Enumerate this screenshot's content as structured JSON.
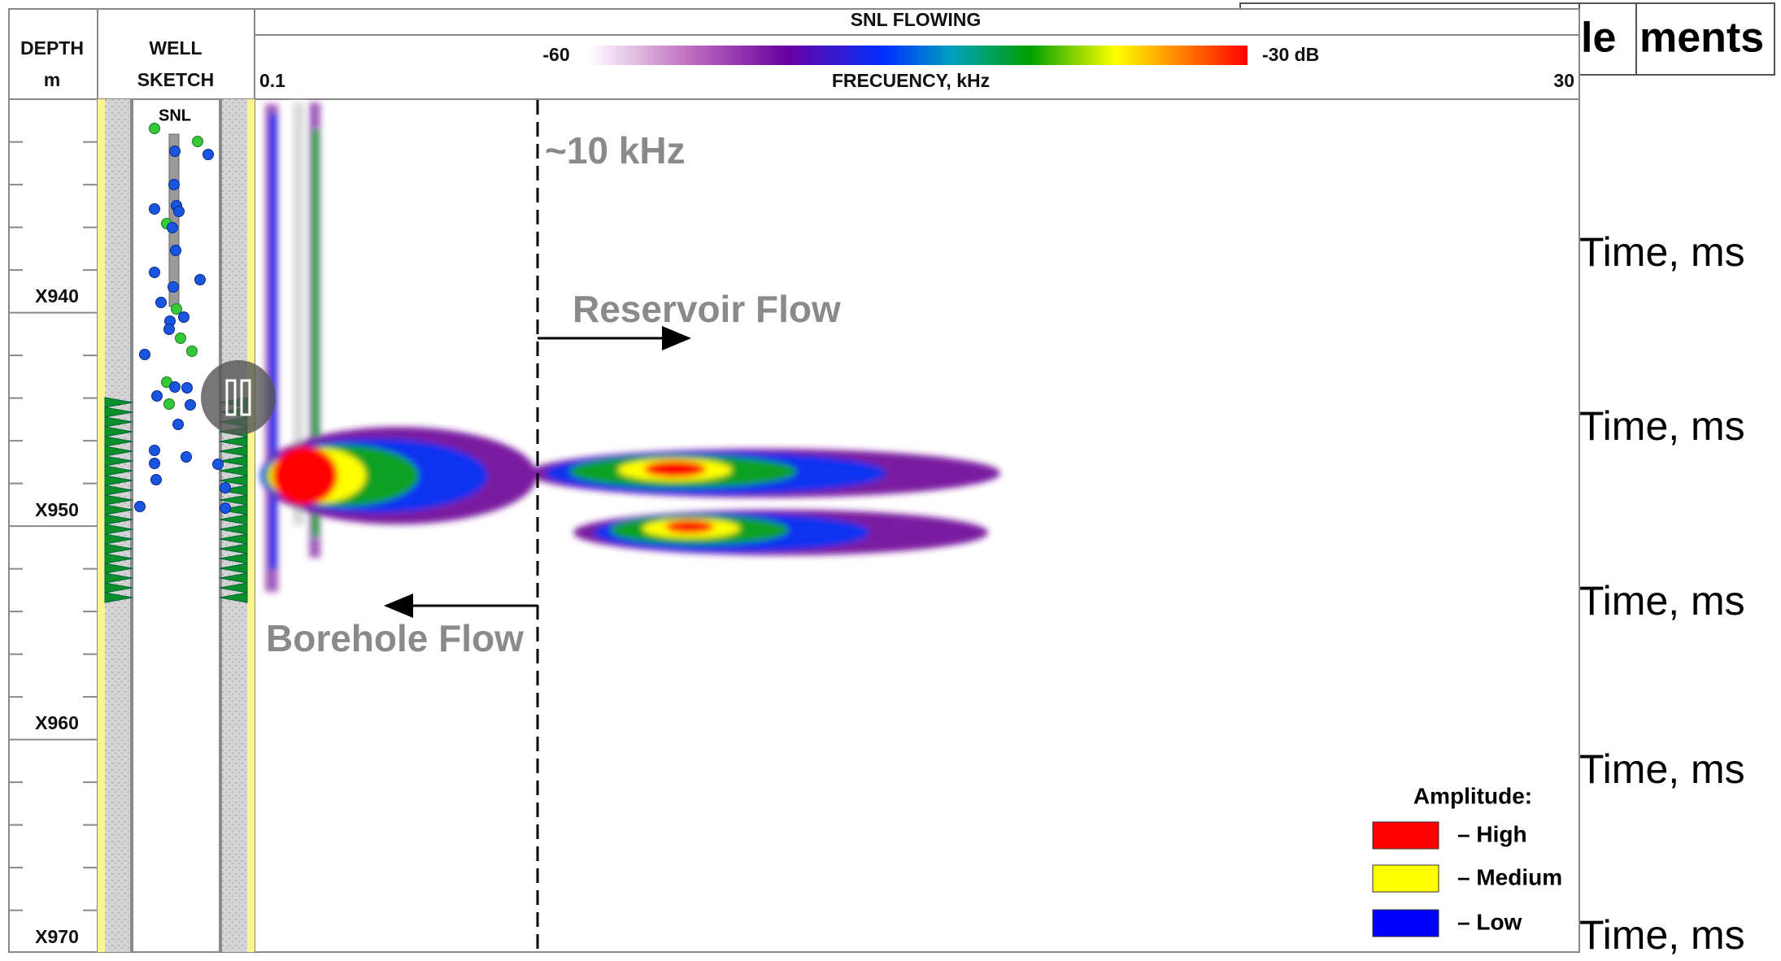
{
  "header": {
    "depth": "DEPTH",
    "depth_unit": "m",
    "well_top": "WELL",
    "well_bottom": "SKETCH",
    "track_title": "SNL FLOWING",
    "scale_min": "-60",
    "scale_max": "-30 dB",
    "freq_min": "0.1",
    "freq_label": "FRECUENCY, kHz",
    "freq_max": "30"
  },
  "sketch_label": "SNL",
  "depth_labels": [
    "X940",
    "X950",
    "X960",
    "X970"
  ],
  "annotations": {
    "frequency": "~10 kHz",
    "reservoir": "Reservoir Flow",
    "borehole": "Borehole Flow"
  },
  "legend": {
    "title": "Amplitude:",
    "items": [
      {
        "label": "– High",
        "color": "#ff0000"
      },
      {
        "label": "– Medium",
        "color": "#ffff00"
      },
      {
        "label": "– Low",
        "color": "#0000ff"
      }
    ]
  },
  "side_labels": [
    "Time, ms",
    "Time, ms",
    "Time, ms",
    "Time, ms",
    "Time, ms"
  ],
  "slide_title": [
    "le",
    "ments"
  ]
}
